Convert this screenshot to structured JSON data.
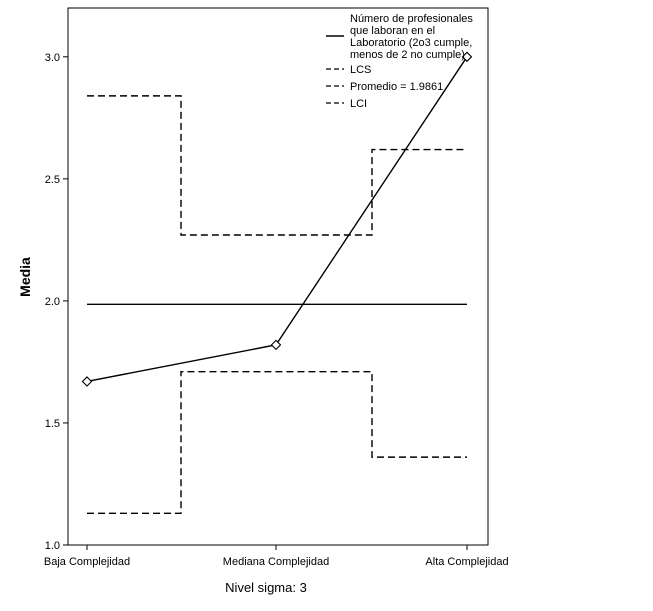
{
  "chart_data": {
    "type": "line",
    "categories": [
      "Baja Complejidad",
      "Mediana Complejidad",
      "Alta Complejidad"
    ],
    "ylabel": "Media",
    "xlabel": "",
    "note": "Nivel sigma: 3",
    "ylim": [
      1.0,
      3.2
    ],
    "yticks": [
      1.0,
      1.5,
      2.0,
      2.5,
      3.0
    ],
    "ytick_labels": [
      "1.0",
      "1.5",
      "2.0",
      "2.5",
      "3.0"
    ],
    "grid": false,
    "series": [
      {
        "name": "Número de profesionales que laboran en el Laboratorio (2o3 cumple, menos de 2 no cumple)",
        "values": [
          1.67,
          1.82,
          3.0
        ],
        "style": "solid",
        "marker": "diamond"
      },
      {
        "name": "LCS",
        "values": [
          2.84,
          2.27,
          2.62
        ],
        "style": "dashed",
        "step": true
      },
      {
        "name": "Promedio = 1.9861",
        "values": [
          1.9861,
          1.9861,
          1.9861
        ],
        "style": "solid"
      },
      {
        "name": "LCI",
        "values": [
          1.13,
          1.71,
          1.36
        ],
        "style": "dashed",
        "step": true
      }
    ],
    "legend": {
      "position": "top-right",
      "lines": [
        "Número de profesionales",
        "que laboran en el",
        "Laboratorio  (2o3 cumple,",
        "menos de 2 no cumple)"
      ],
      "lcs": "LCS",
      "promedio": "Promedio = 1.9861",
      "lci": "LCI"
    }
  }
}
